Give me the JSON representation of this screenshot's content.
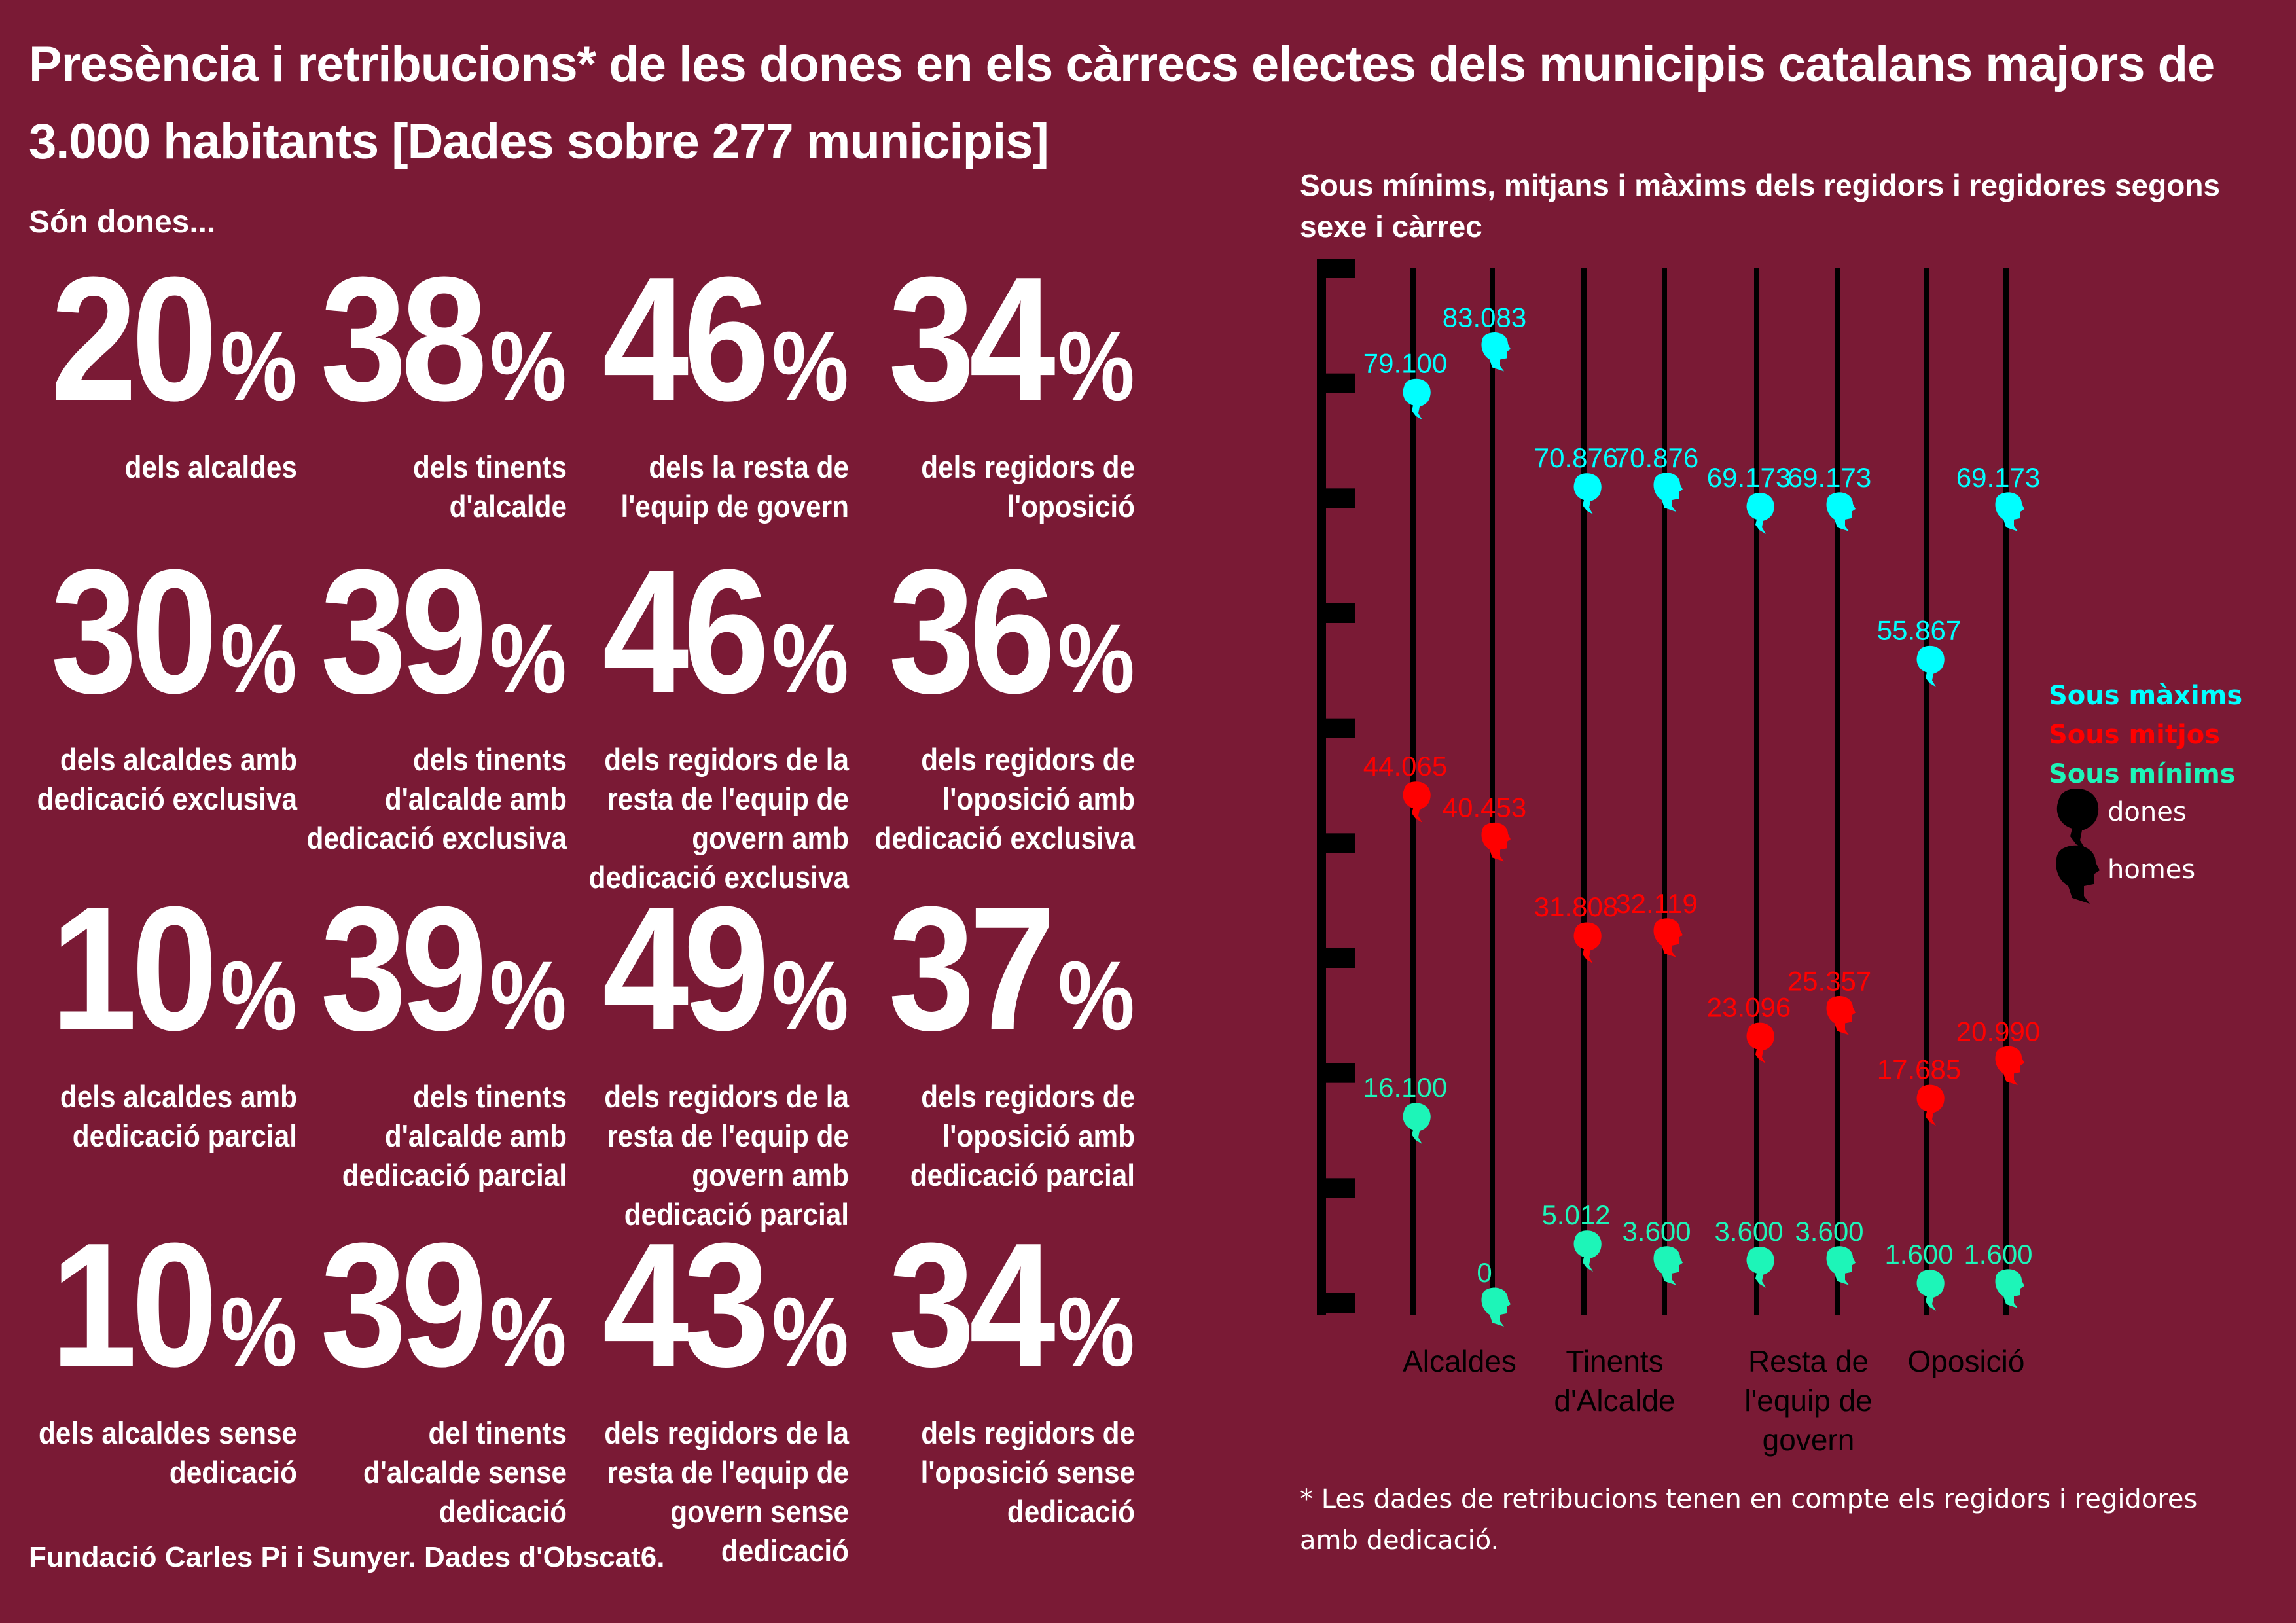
{
  "title": "Presència i retribucions* de les dones en els càrrecs electes dels municipis catalans majors de 3.000 habitants [Dades sobre 277 municipis]",
  "subhead": "Són dones...",
  "stats": [
    {
      "value": "20",
      "unit": "%",
      "label": "dels alcaldes"
    },
    {
      "value": "38",
      "unit": "%",
      "label": "dels tinents\nd'alcalde"
    },
    {
      "value": "46",
      "unit": "%",
      "label": "dels la resta de\nl'equip de govern"
    },
    {
      "value": "34",
      "unit": "%",
      "label": "dels regidors de\nl'oposició"
    },
    {
      "value": "30",
      "unit": "%",
      "label": "dels alcaldes amb\ndedicació exclusiva"
    },
    {
      "value": "39",
      "unit": "%",
      "label": "dels tinents\nd'alcalde amb\ndedicació exclusiva"
    },
    {
      "value": "46",
      "unit": "%",
      "label": "dels regidors de la\nresta de l'equip de\ngovern amb\ndedicació exclusiva"
    },
    {
      "value": "36",
      "unit": "%",
      "label": "dels regidors de\nl'oposició amb\ndedicació exclusiva"
    },
    {
      "value": "10",
      "unit": "%",
      "label": "dels alcaldes amb\ndedicació parcial"
    },
    {
      "value": "39",
      "unit": "%",
      "label": "dels tinents\nd'alcalde amb\ndedicació parcial"
    },
    {
      "value": "49",
      "unit": "%",
      "label": "dels regidors de la\nresta de l'equip de\ngovern amb\ndedicació parcial"
    },
    {
      "value": "37",
      "unit": "%",
      "label": "dels regidors de\nl'oposició amb\ndedicació parcial"
    },
    {
      "value": "10",
      "unit": "%",
      "label": "dels alcaldes sense\ndedicació"
    },
    {
      "value": "39",
      "unit": "%",
      "label": "del tinents\nd'alcalde sense\ndedicació"
    },
    {
      "value": "43",
      "unit": "%",
      "label": "dels regidors de la\nresta de l'equip de\ngovern sense\ndedicació"
    },
    {
      "value": "34",
      "unit": "%",
      "label": "dels regidors de\nl'oposició sense\ndedicació"
    }
  ],
  "footer": "Fundació Carles Pi i Sunyer. Dades d'Obscat6.",
  "footnote": "* Les dades de retribucions tenen en compte els regidors i regidores amb dedicació.",
  "chart_data": {
    "type": "scatter",
    "title": "Sous mínims, mitjans i màxims dels regidors i regidores segons sexe i càrrec",
    "ylim": [
      0,
      90000
    ],
    "grid": false,
    "legend_position": "right",
    "categories": [
      "Alcaldes",
      "Tinents\nd'Alcalde",
      "Resta de\nl'equip de\ngovern",
      "Oposició"
    ],
    "sexes": [
      "dones",
      "homes"
    ],
    "series": [
      {
        "name": "Sous màxims",
        "color": "#00ffff",
        "dones": [
          79100,
          70876,
          69173,
          55867
        ],
        "homes": [
          83083,
          70876,
          69173,
          69173
        ],
        "labels_dones": [
          "79.100",
          "70.876",
          "69.173",
          "55.867"
        ],
        "labels_homes": [
          "83.083",
          "70.876",
          "69.173",
          "69.173"
        ]
      },
      {
        "name": "Sous mitjos",
        "color": "#ff0000",
        "dones": [
          44065,
          31808,
          23096,
          17685
        ],
        "homes": [
          40453,
          32119,
          25357,
          20990
        ],
        "labels_dones": [
          "44.065",
          "31.808",
          "23.096",
          "17.685"
        ],
        "labels_homes": [
          "40.453",
          "32.119",
          "25.357",
          "20.990"
        ]
      },
      {
        "name": "Sous mínims",
        "color": "#1df5b8",
        "dones": [
          16100,
          5012,
          3600,
          1600
        ],
        "homes": [
          0,
          3600,
          3600,
          1600
        ],
        "labels_dones": [
          "16.100",
          "5.012",
          "3.600",
          "1.600"
        ],
        "labels_homes": [
          "0",
          "3.600",
          "3.600",
          "1.600"
        ]
      }
    ],
    "legend": {
      "dones": "dones",
      "homes": "homes"
    }
  },
  "colors": {
    "background": "#7a1a35",
    "axis": "#000000"
  }
}
